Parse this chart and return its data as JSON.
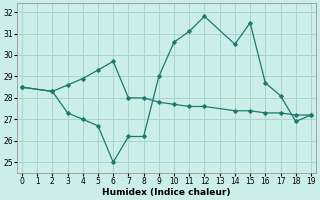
{
  "xlabel": "Humidex (Indice chaleur)",
  "ylabel": "",
  "background_color": "#cceee8",
  "grid_color": "#aad4cc",
  "line_color": "#1a7a6e",
  "x_line1": [
    0,
    2,
    3,
    4,
    5,
    6,
    7,
    8,
    9,
    10,
    11,
    12,
    14,
    15,
    16,
    17,
    18,
    19
  ],
  "y_line1": [
    28.5,
    28.3,
    27.3,
    27.0,
    26.7,
    25.0,
    26.2,
    26.2,
    29.0,
    30.6,
    31.1,
    31.8,
    30.5,
    31.5,
    28.7,
    28.1,
    26.9,
    27.2
  ],
  "x_line2": [
    0,
    2,
    3,
    4,
    5,
    6,
    7,
    8,
    9,
    10,
    11,
    12,
    14,
    15,
    16,
    17,
    18,
    19
  ],
  "y_line2": [
    28.5,
    28.3,
    28.6,
    28.9,
    29.3,
    29.7,
    28.0,
    28.0,
    27.8,
    27.7,
    27.6,
    27.6,
    27.4,
    27.4,
    27.3,
    27.3,
    27.2,
    27.2
  ],
  "xlim": [
    -0.3,
    19.3
  ],
  "ylim": [
    24.5,
    32.4
  ],
  "xticks": [
    0,
    1,
    2,
    3,
    4,
    5,
    6,
    7,
    8,
    9,
    10,
    11,
    12,
    13,
    14,
    15,
    16,
    17,
    18,
    19
  ],
  "yticks": [
    25,
    26,
    27,
    28,
    29,
    30,
    31,
    32
  ],
  "tick_fontsize": 5.5,
  "xlabel_fontsize": 6.5,
  "marker": "D",
  "marker_size": 1.8,
  "line_width": 0.9
}
